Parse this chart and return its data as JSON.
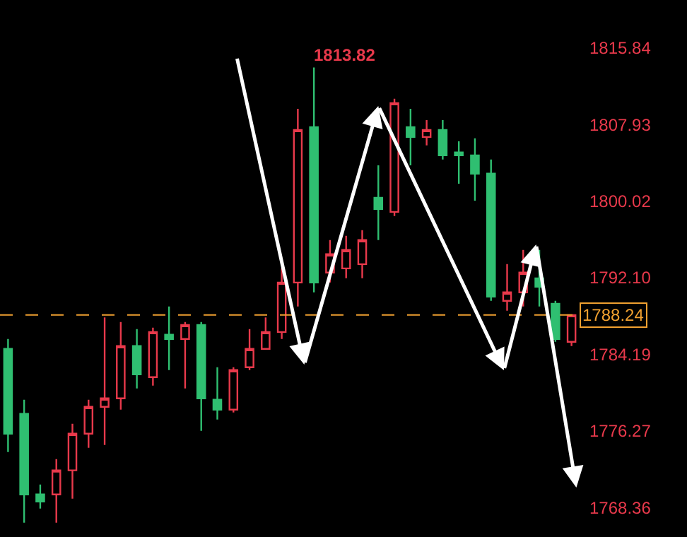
{
  "chart_data": {
    "type": "candlestick",
    "categories": [
      null,
      null,
      null,
      null,
      null,
      null,
      null,
      null,
      null,
      null,
      null,
      null,
      null,
      null,
      null,
      null,
      null,
      null,
      null,
      null,
      null,
      null,
      null,
      null,
      null,
      null,
      null,
      null,
      null,
      null,
      null,
      null,
      null,
      null,
      null,
      null
    ],
    "ohlc": [
      [
        1784.74,
        1785.76,
        1774.08,
        1775.98
      ],
      [
        1778.03,
        1779.49,
        1766.78,
        1769.7
      ],
      [
        1769.7,
        1770.73,
        1768.24,
        1768.97
      ],
      [
        1769.7,
        1773.35,
        1766.78,
        1772.19
      ],
      [
        1772.19,
        1777.0,
        1769.27,
        1775.98
      ],
      [
        1775.98,
        1779.49,
        1774.52,
        1778.76
      ],
      [
        1778.76,
        1788.0,
        1774.81,
        1779.63
      ],
      [
        1779.63,
        1787.52,
        1778.46,
        1785.04
      ],
      [
        1785.04,
        1786.79,
        1780.65,
        1782.11
      ],
      [
        1781.82,
        1786.93,
        1780.95,
        1786.49
      ],
      [
        1786.2,
        1789.12,
        1782.55,
        1785.76
      ],
      [
        1785.76,
        1787.52,
        1780.65,
        1787.22
      ],
      [
        1787.22,
        1787.52,
        1776.27,
        1779.63
      ],
      [
        1779.49,
        1782.84,
        1777.44,
        1778.46
      ],
      [
        1778.46,
        1782.84,
        1778.17,
        1782.55
      ],
      [
        1782.84,
        1786.79,
        1782.55,
        1784.74
      ],
      [
        1784.74,
        1788.0,
        1784.74,
        1786.49
      ],
      [
        1786.49,
        1793.06,
        1785.76,
        1791.6
      ],
      [
        1791.6,
        1809.56,
        1789.12,
        1807.37
      ],
      [
        1807.66,
        1813.82,
        1790.58,
        1791.6
      ],
      [
        1792.63,
        1795.99,
        1791.6,
        1794.53
      ],
      [
        1793.06,
        1796.42,
        1792.04,
        1794.97
      ],
      [
        1793.5,
        1797.01,
        1792.04,
        1795.99
      ],
      [
        1800.36,
        1803.72,
        1795.99,
        1799.2
      ],
      [
        1798.9,
        1810.59,
        1798.47,
        1810.15
      ],
      [
        1807.66,
        1809.56,
        1803.72,
        1806.64
      ],
      [
        1806.64,
        1808.39,
        1805.77,
        1807.37
      ],
      [
        1807.37,
        1808.39,
        1804.31,
        1804.74
      ],
      [
        1805.04,
        1806.2,
        1801.82,
        1804.74
      ],
      [
        1804.74,
        1806.5,
        1800.07,
        1802.85
      ],
      [
        1802.85,
        1804.31,
        1789.71,
        1790.14
      ],
      [
        1789.71,
        1793.5,
        1788.69,
        1790.58
      ],
      [
        1790.58,
        1794.97,
        1789.12,
        1792.63
      ],
      [
        1792.04,
        1794.97,
        1789.12,
        1791.17
      ],
      [
        1789.41,
        1789.71,
        1785.47,
        1785.76
      ],
      [
        1785.47,
        1788.24,
        1785.04,
        1788.24
      ]
    ],
    "ylim": [
      1765.3,
      1820.8
    ],
    "yticks": [
      1815.84,
      1807.93,
      1800.02,
      {
        "value": 1792.1,
        "label": "1792.10"
      },
      1784.19,
      1776.27,
      1768.36
    ],
    "tick_labels": "y",
    "grid": false,
    "ref_lines": [
      {
        "axis": "y",
        "value": 1788.24,
        "label": "1788.24",
        "color": "#f0a030",
        "line_style": "dashed"
      }
    ],
    "annotations": [
      "1813.82"
    ]
  }
}
